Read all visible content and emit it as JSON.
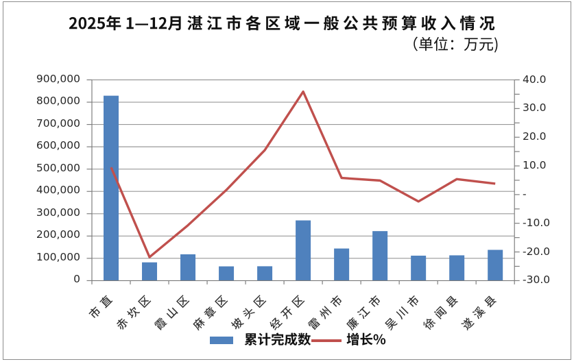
{
  "chart": {
    "title": "2025年1—12月湛江市各区域一般公共预算收入情况",
    "subtitle": "（单位：万元)",
    "legend": [
      {
        "label": "累计完成数",
        "marker": "bar-swatch",
        "color": "#4F81BD"
      },
      {
        "label": "增长%",
        "marker": "line-swatch",
        "color": "#C0504D"
      }
    ]
  },
  "chart_data": {
    "type": "bar+line",
    "title": "2025年1—12月湛江市各区域一般公共预算收入情况",
    "subtitle": "（单位：万元)",
    "unit": "万元",
    "categories": [
      "市直",
      "赤坎区",
      "霞山区",
      "麻章区",
      "坡头区",
      "经开区",
      "雷州市",
      "廉江市",
      "吴川市",
      "徐闻县",
      "遂溪县"
    ],
    "series": [
      {
        "name": "累计完成数",
        "type": "bar",
        "axis": "left",
        "color": "#4F81BD",
        "values": [
          829000,
          82000,
          118000,
          64000,
          64500,
          270000,
          144000,
          222000,
          112000,
          113500,
          138000
        ]
      },
      {
        "name": "增长%",
        "type": "line",
        "axis": "right",
        "color": "#C0504D",
        "values": [
          9.5,
          -21.8,
          -10.7,
          1.6,
          15.5,
          35.9,
          5.8,
          4.9,
          -2.4,
          5.4,
          3.8
        ]
      }
    ],
    "left_axis": {
      "min": 0,
      "max": 900000,
      "step": 100000,
      "tick_labels": [
        "900,000",
        "800,000",
        "700,000",
        "600,000",
        "500,000",
        "400,000",
        "300,000",
        "200,000",
        "100,000",
        "0"
      ]
    },
    "right_axis": {
      "min": -30,
      "max": 40,
      "label_step": 10,
      "tick_step": 5,
      "tick_labels": [
        "40.0",
        "30.0",
        "20.0",
        "10.0",
        "-",
        "-10.0",
        "-20.0",
        "-30.0"
      ]
    },
    "grid": true,
    "legend_position": "bottom"
  },
  "colors": {
    "bar": "#4F81BD",
    "line": "#C0504D",
    "grid": "#989898",
    "axis": "#7A7A7A",
    "frame": "#8C8C8C",
    "label_text": "#262626",
    "title_text": "#111111",
    "category_text": "#333333",
    "background": "#FFFFFF"
  }
}
